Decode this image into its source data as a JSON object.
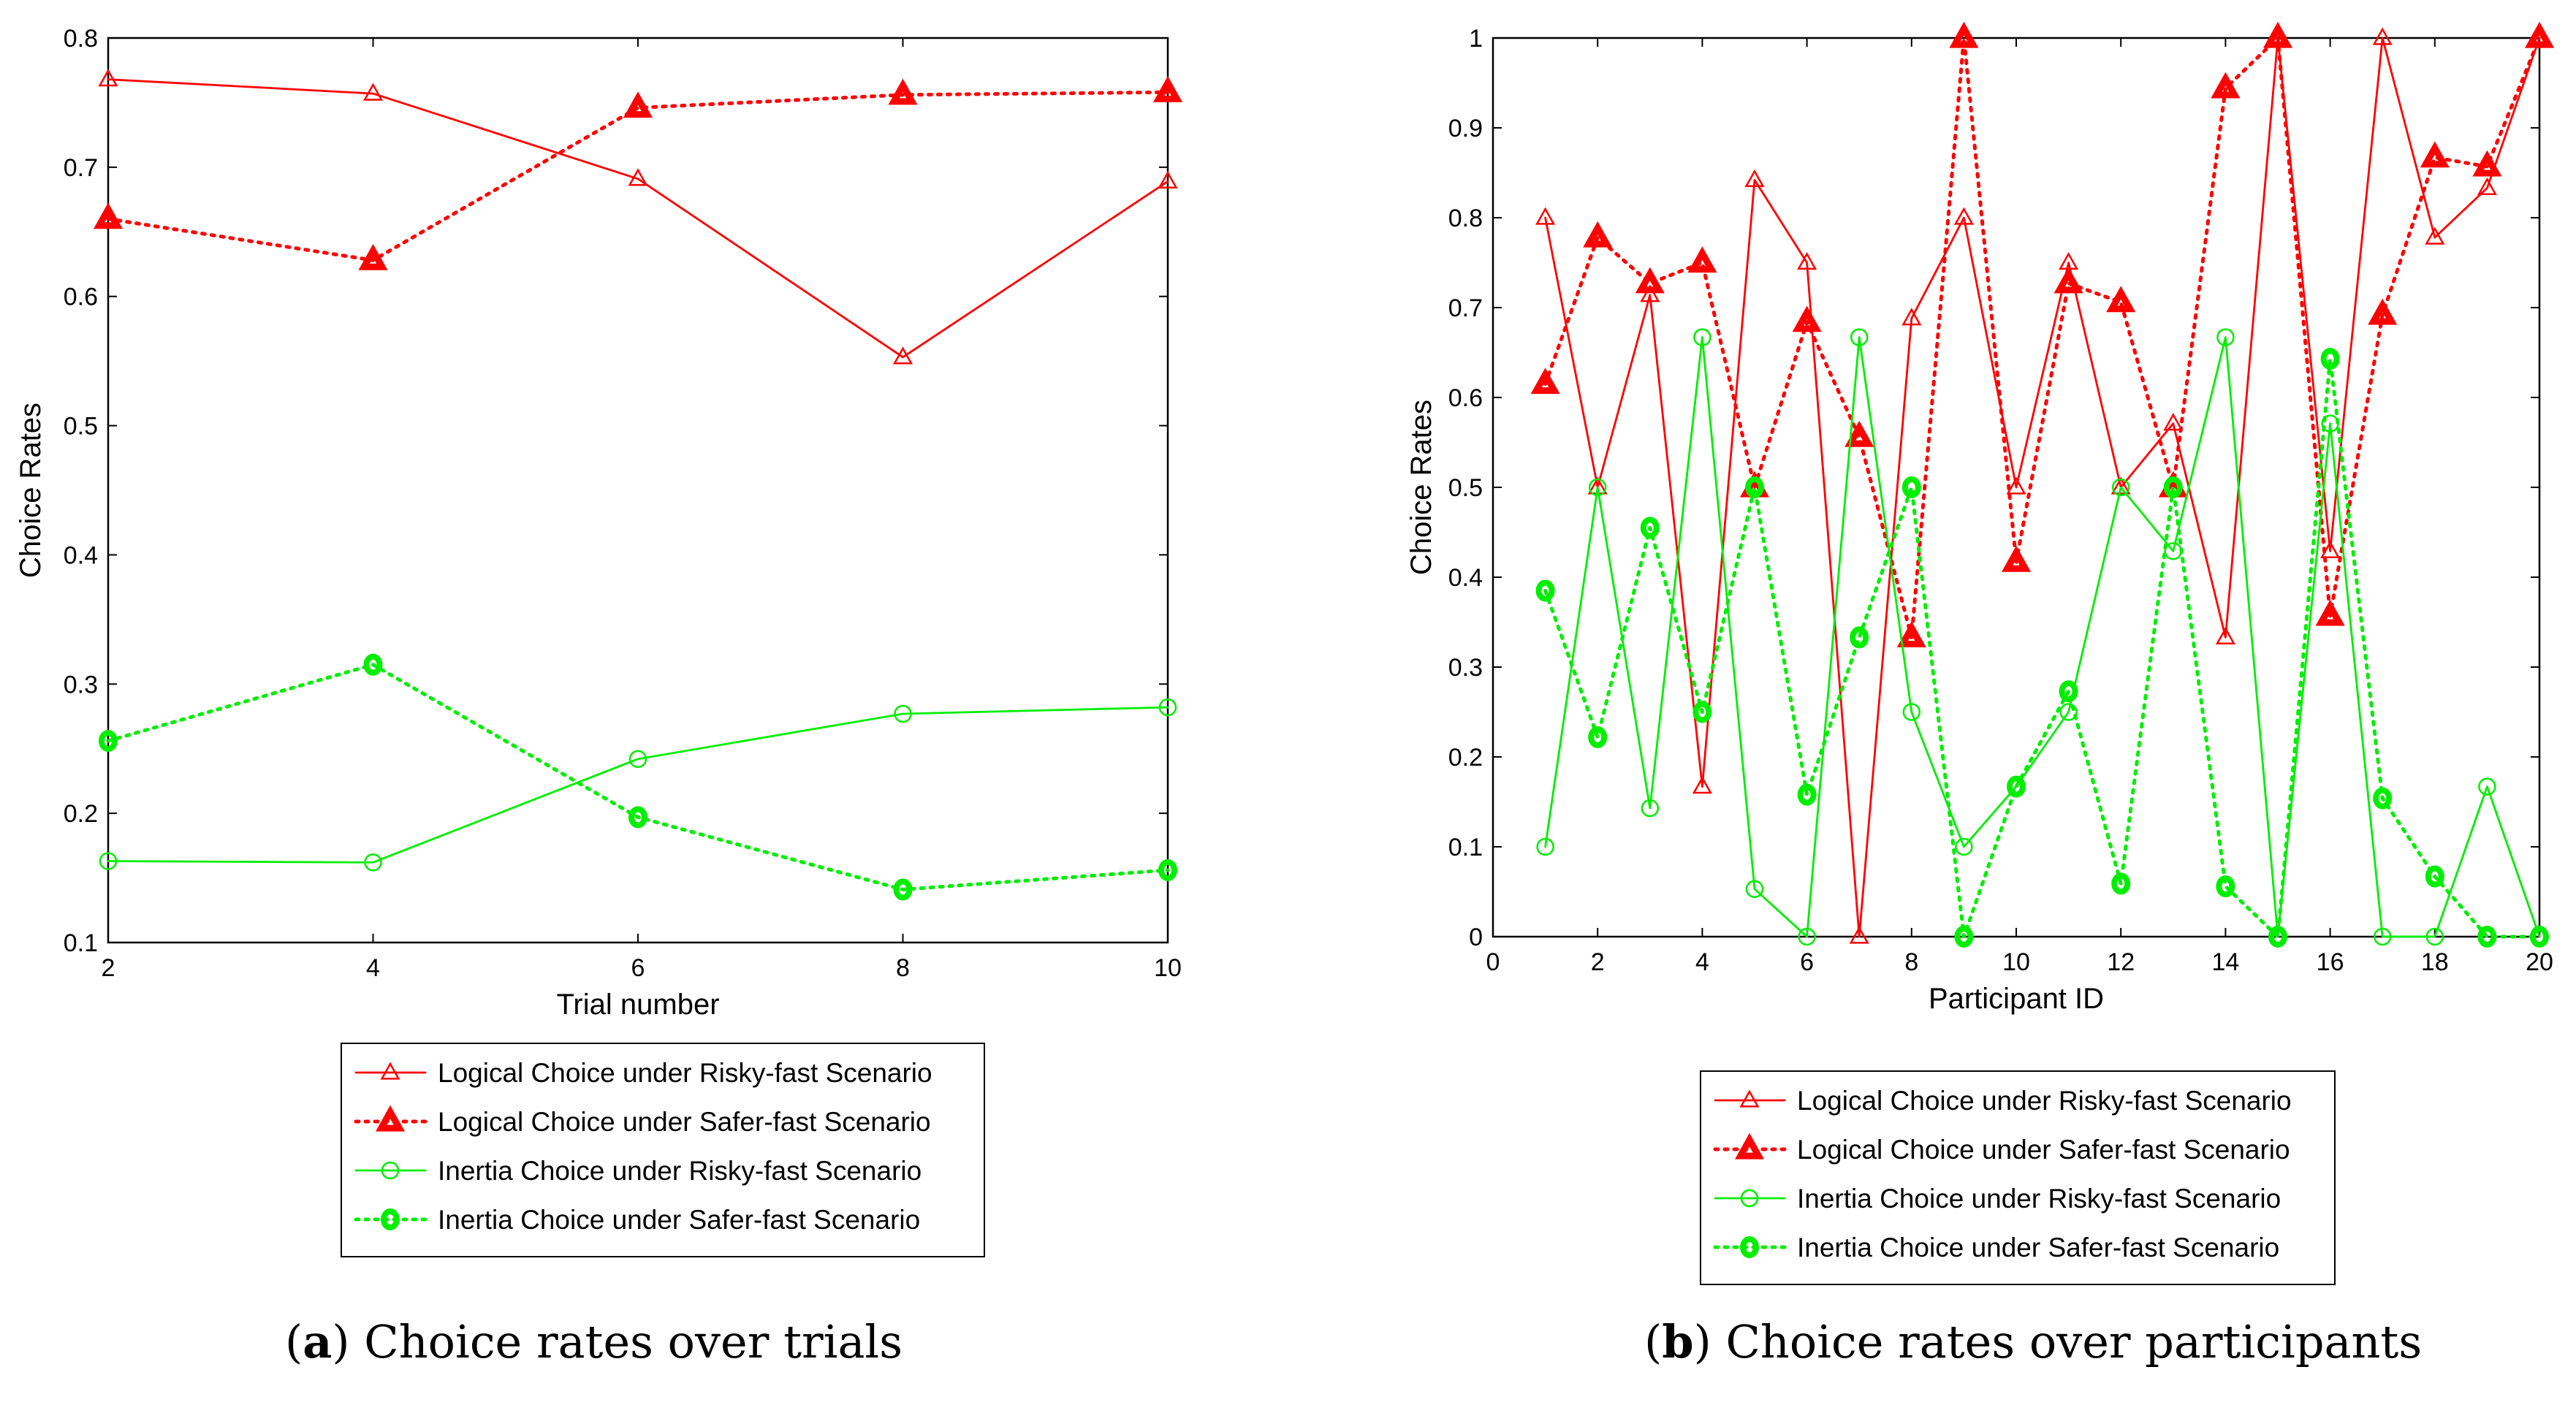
{
  "colors": {
    "logical": "#ff0000",
    "inertia": "#00ee00",
    "axis": "#000000",
    "background": "#ffffff"
  },
  "chart_data": [
    {
      "type": "line",
      "panel": "a",
      "caption_letter": "a",
      "caption_text": " Choice rates over trials",
      "xlabel": "Trial number",
      "ylabel": "Choice Rates",
      "xlim": [
        2,
        10
      ],
      "ylim": [
        0.1,
        0.8
      ],
      "xticks": [
        "2",
        "4",
        "6",
        "8",
        "10"
      ],
      "xtick_values": [
        2,
        4,
        6,
        8,
        10
      ],
      "yticks": [
        "0.1",
        "0.2",
        "0.3",
        "0.4",
        "0.5",
        "0.6",
        "0.7",
        "0.8"
      ],
      "ytick_values": [
        0.1,
        0.2,
        0.3,
        0.4,
        0.5,
        0.6,
        0.7,
        0.8
      ],
      "grid": false,
      "legend_position": "below",
      "series": [
        {
          "name": "Logical Choice under Risky-fast Scenario",
          "color": "logical",
          "style": "solid",
          "marker": "triangle-open",
          "x": [
            2,
            4,
            6,
            8,
            10
          ],
          "values": [
            0.768,
            0.757,
            0.691,
            0.553,
            0.689
          ]
        },
        {
          "name": "Logical Choice under Safer-fast Scenario",
          "color": "logical",
          "style": "dotted",
          "marker": "triangle-bold",
          "x": [
            2,
            4,
            6,
            8,
            10
          ],
          "values": [
            0.66,
            0.628,
            0.746,
            0.756,
            0.758
          ]
        },
        {
          "name": "Inertia Choice under Risky-fast Scenario",
          "color": "inertia",
          "style": "solid",
          "marker": "circle-open",
          "x": [
            2,
            4,
            6,
            8,
            10
          ],
          "values": [
            0.163,
            0.162,
            0.242,
            0.277,
            0.282
          ]
        },
        {
          "name": "Inertia Choice under Safer-fast Scenario",
          "color": "inertia",
          "style": "dotted",
          "marker": "circle-bold",
          "x": [
            2,
            4,
            6,
            8,
            10
          ],
          "values": [
            0.256,
            0.315,
            0.197,
            0.141,
            0.156
          ]
        }
      ]
    },
    {
      "type": "line",
      "panel": "b",
      "caption_letter": "b",
      "caption_text": " Choice rates over participants",
      "xlabel": "Participant ID",
      "ylabel": "Choice Rates",
      "xlim": [
        0,
        20
      ],
      "ylim": [
        0,
        1
      ],
      "xticks": [
        "0",
        "2",
        "4",
        "6",
        "8",
        "10",
        "12",
        "14",
        "16",
        "18",
        "20"
      ],
      "xtick_values": [
        0,
        2,
        4,
        6,
        8,
        10,
        12,
        14,
        16,
        18,
        20
      ],
      "yticks": [
        "0",
        "0.1",
        "0.2",
        "0.3",
        "0.4",
        "0.5",
        "0.6",
        "0.7",
        "0.8",
        "0.9",
        "1"
      ],
      "ytick_values": [
        0,
        0.1,
        0.2,
        0.3,
        0.4,
        0.5,
        0.6,
        0.7,
        0.8,
        0.9,
        1
      ],
      "grid": false,
      "legend_position": "below",
      "series": [
        {
          "name": "Logical Choice under Risky-fast Scenario",
          "color": "logical",
          "style": "solid",
          "marker": "triangle-open",
          "x": [
            1,
            2,
            3,
            4,
            5,
            6,
            7,
            8,
            9,
            10,
            11,
            12,
            13,
            14,
            15,
            16,
            17,
            18,
            19,
            20
          ],
          "values": [
            0.8,
            0.5,
            0.714,
            0.167,
            0.842,
            0.75,
            0.0,
            0.688,
            0.8,
            0.5,
            0.75,
            0.5,
            0.571,
            0.333,
            1.0,
            0.429,
            1.0,
            0.778,
            0.833,
            1.0
          ]
        },
        {
          "name": "Logical Choice under Safer-fast Scenario",
          "color": "logical",
          "style": "dotted",
          "marker": "triangle-bold",
          "x": [
            1,
            2,
            3,
            4,
            5,
            6,
            7,
            8,
            9,
            10,
            11,
            12,
            13,
            14,
            15,
            16,
            17,
            18,
            19,
            20
          ],
          "values": [
            0.615,
            0.778,
            0.727,
            0.75,
            0.5,
            0.684,
            0.556,
            0.333,
            1.0,
            0.417,
            0.727,
            0.706,
            0.5,
            0.944,
            1.0,
            0.357,
            0.692,
            0.867,
            0.857,
            1.0
          ]
        },
        {
          "name": "Inertia Choice under Risky-fast Scenario",
          "color": "inertia",
          "style": "solid",
          "marker": "circle-open",
          "x": [
            1,
            2,
            3,
            4,
            5,
            6,
            7,
            8,
            9,
            10,
            11,
            12,
            13,
            14,
            15,
            16,
            17,
            18,
            19,
            20
          ],
          "values": [
            0.1,
            0.5,
            0.143,
            0.667,
            0.053,
            0.0,
            0.667,
            0.25,
            0.1,
            0.167,
            0.25,
            0.5,
            0.429,
            0.667,
            0.0,
            0.571,
            0.0,
            0.0,
            0.167,
            0.0
          ]
        },
        {
          "name": "Inertia Choice under Safer-fast Scenario",
          "color": "inertia",
          "style": "dotted",
          "marker": "circle-bold",
          "x": [
            1,
            2,
            3,
            4,
            5,
            6,
            7,
            8,
            9,
            10,
            11,
            12,
            13,
            14,
            15,
            16,
            17,
            18,
            19,
            20
          ],
          "values": [
            0.385,
            0.222,
            0.455,
            0.25,
            0.5,
            0.158,
            0.333,
            0.5,
            0.0,
            0.167,
            0.273,
            0.059,
            0.5,
            0.056,
            0.0,
            0.643,
            0.154,
            0.067,
            0.0,
            0.0
          ]
        }
      ]
    }
  ]
}
